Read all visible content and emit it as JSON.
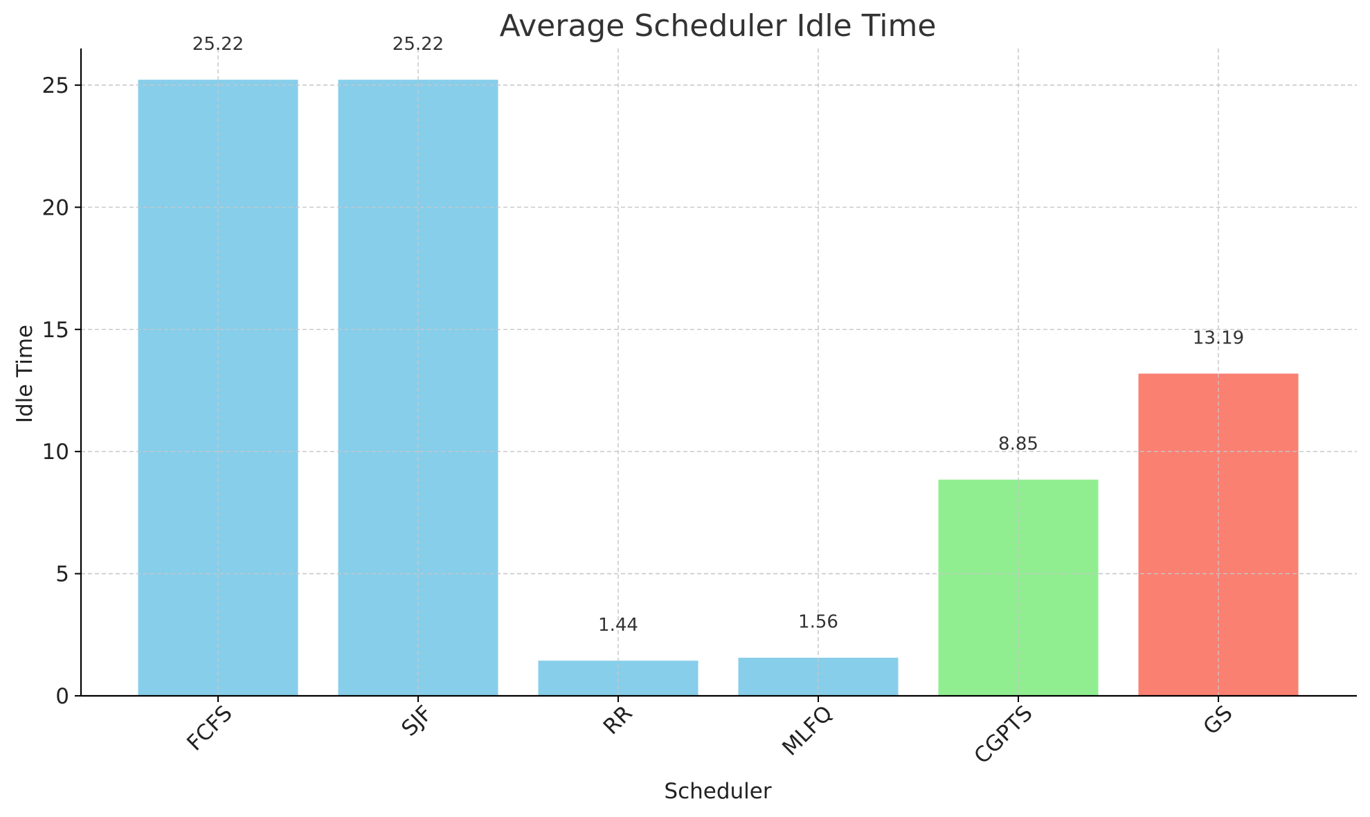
{
  "chart_data": {
    "type": "bar",
    "title": "Average Scheduler Idle Time",
    "xlabel": "Scheduler",
    "ylabel": "Idle Time",
    "categories": [
      "FCFS",
      "SJF",
      "RR",
      "MLFQ",
      "CGPTS",
      "GS"
    ],
    "values": [
      25.22,
      25.22,
      1.44,
      1.56,
      8.85,
      13.19
    ],
    "value_labels": [
      "25.22",
      "25.22",
      "1.44",
      "1.56",
      "8.85",
      "13.19"
    ],
    "bar_colors": [
      "#87CEEB",
      "#87CEEB",
      "#87CEEB",
      "#87CEEB",
      "#90EE90",
      "#FA8072"
    ],
    "ylim": [
      0,
      26.5
    ],
    "yticks": [
      0,
      5,
      10,
      15,
      20,
      25
    ],
    "grid": true,
    "xtick_rotation": 45
  }
}
